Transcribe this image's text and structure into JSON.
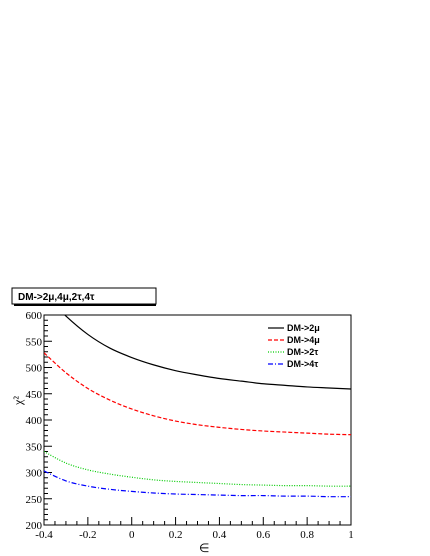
{
  "chart_data": {
    "type": "line",
    "title": "DM->2μ,4μ,2τ,4τ",
    "xlabel": "∈",
    "ylabel": "χ²",
    "xlim": [
      -0.4,
      1
    ],
    "ylim": [
      200,
      600
    ],
    "xticks": [
      "-0.4",
      "-0.2",
      "0",
      "0.2",
      "0.4",
      "0.6",
      "0.8",
      "1"
    ],
    "yticks": [
      "200",
      "250",
      "300",
      "350",
      "400",
      "450",
      "500",
      "550",
      "600"
    ],
    "grid": false,
    "legend": "top-right",
    "series": [
      {
        "name": "DM->2μ",
        "color": "#000000",
        "dash": "solid",
        "x": [
          -0.4,
          -0.3,
          -0.2,
          -0.1,
          0,
          0.1,
          0.2,
          0.3,
          0.4,
          0.5,
          0.6,
          0.7,
          0.8,
          0.9,
          1.0
        ],
        "y": [
          640,
          598,
          563,
          537,
          519,
          505,
          494,
          486,
          479,
          474,
          469,
          466,
          463,
          461,
          459
        ]
      },
      {
        "name": "DM->4μ",
        "color": "#ff0000",
        "dash": "dashed",
        "x": [
          -0.4,
          -0.3,
          -0.2,
          -0.1,
          0,
          0.1,
          0.2,
          0.3,
          0.4,
          0.5,
          0.6,
          0.7,
          0.8,
          0.9,
          1.0
        ],
        "y": [
          528,
          490,
          460,
          438,
          421,
          408,
          398,
          391,
          386,
          382,
          379,
          377,
          375,
          373,
          372
        ]
      },
      {
        "name": "DM->2τ",
        "color": "#00cc00",
        "dash": "dotted",
        "x": [
          -0.4,
          -0.3,
          -0.2,
          -0.1,
          0,
          0.1,
          0.2,
          0.3,
          0.4,
          0.5,
          0.6,
          0.7,
          0.8,
          0.9,
          1.0
        ],
        "y": [
          340,
          318,
          305,
          297,
          291,
          286,
          283,
          281,
          279,
          277,
          276,
          275,
          275,
          274,
          274
        ]
      },
      {
        "name": "DM->4τ",
        "color": "#0000ff",
        "dash": "dashdot",
        "x": [
          -0.4,
          -0.3,
          -0.2,
          -0.1,
          0,
          0.1,
          0.2,
          0.3,
          0.4,
          0.5,
          0.6,
          0.7,
          0.8,
          0.9,
          1.0
        ],
        "y": [
          303,
          284,
          274,
          268,
          264,
          261,
          259,
          258,
          257,
          256,
          256,
          255,
          255,
          254,
          254
        ]
      }
    ]
  }
}
